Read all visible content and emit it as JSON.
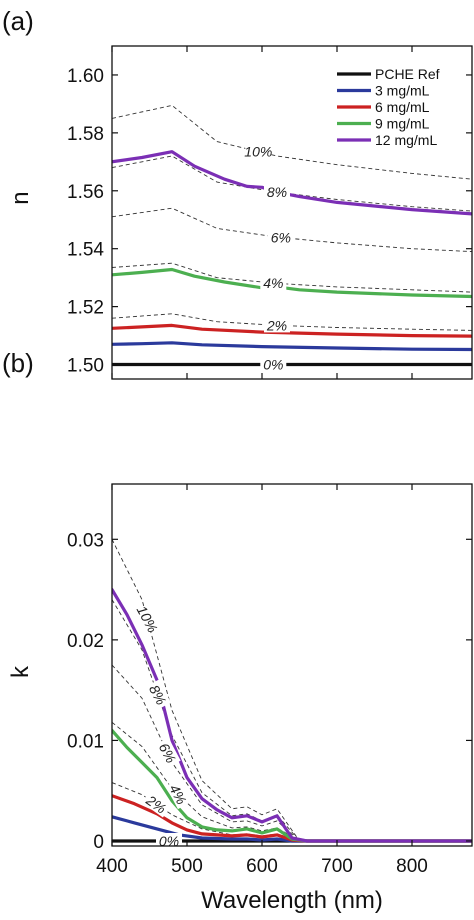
{
  "chart_data": [
    {
      "type": "line",
      "panel_label": "(a)",
      "ylabel": "n",
      "xlabel": "",
      "xlim": [
        400,
        880
      ],
      "ylim": [
        1.495,
        1.61
      ],
      "yticks": [
        1.5,
        1.52,
        1.54,
        1.56,
        1.58,
        1.6
      ],
      "ytick_labels": [
        "1.50",
        "1.52",
        "1.54",
        "1.56",
        "1.58",
        "1.60"
      ],
      "legend_position": "top-right",
      "series": [
        {
          "name": "PCHE Ref",
          "color": "#111111",
          "x": [
            400,
            880
          ],
          "y": [
            1.5,
            1.5
          ]
        },
        {
          "name": "3 mg/mL",
          "color": "#2b3a9c",
          "x": [
            400,
            440,
            480,
            520,
            600,
            700,
            800,
            880
          ],
          "y": [
            1.507,
            1.5072,
            1.5075,
            1.5068,
            1.5062,
            1.5057,
            1.5053,
            1.5052
          ]
        },
        {
          "name": "6 mg/mL",
          "color": "#cc2222",
          "x": [
            400,
            440,
            480,
            520,
            600,
            700,
            800,
            880
          ],
          "y": [
            1.5125,
            1.513,
            1.5135,
            1.5122,
            1.5112,
            1.5105,
            1.51,
            1.5098
          ]
        },
        {
          "name": "9 mg/mL",
          "color": "#4caf50",
          "x": [
            400,
            440,
            480,
            510,
            550,
            600,
            620,
            650,
            700,
            800,
            880
          ],
          "y": [
            1.531,
            1.5318,
            1.5328,
            1.5305,
            1.5285,
            1.5265,
            1.5268,
            1.5258,
            1.525,
            1.524,
            1.5235
          ]
        },
        {
          "name": "12 mg/mL",
          "color": "#7b2fb5",
          "x": [
            400,
            440,
            480,
            510,
            550,
            580,
            600,
            620,
            650,
            700,
            800,
            880
          ],
          "y": [
            1.57,
            1.5715,
            1.5735,
            1.5685,
            1.564,
            1.5615,
            1.5612,
            1.5595,
            1.558,
            1.556,
            1.5535,
            1.552
          ]
        }
      ],
      "reference_curves": [
        {
          "label": "10%",
          "x": [
            400,
            480,
            540,
            620,
            700,
            800,
            880
          ],
          "y": [
            1.585,
            1.5895,
            1.577,
            1.572,
            1.569,
            1.566,
            1.564
          ]
        },
        {
          "label": "8%",
          "x": [
            400,
            480,
            540,
            620,
            700,
            800,
            880
          ],
          "y": [
            1.568,
            1.572,
            1.563,
            1.5595,
            1.557,
            1.5545,
            1.553
          ]
        },
        {
          "label": "6%",
          "x": [
            400,
            480,
            540,
            620,
            700,
            800,
            880
          ],
          "y": [
            1.551,
            1.554,
            1.547,
            1.544,
            1.542,
            1.54,
            1.539
          ]
        },
        {
          "label": "4%",
          "x": [
            400,
            480,
            540,
            620,
            700,
            800,
            880
          ],
          "y": [
            1.5335,
            1.535,
            1.53,
            1.528,
            1.5268,
            1.5258,
            1.525
          ]
        },
        {
          "label": "2%",
          "x": [
            400,
            480,
            540,
            620,
            700,
            800,
            880
          ],
          "y": [
            1.516,
            1.5175,
            1.5148,
            1.5135,
            1.5128,
            1.5122,
            1.5118
          ]
        },
        {
          "label": "0%",
          "x": [
            400,
            880
          ],
          "y": [
            1.5,
            1.5
          ]
        }
      ]
    },
    {
      "type": "line",
      "panel_label": "(b)",
      "ylabel": "k",
      "xlabel": "Wavelength (nm)",
      "xlim": [
        400,
        880
      ],
      "ylim": [
        -0.0005,
        0.0355
      ],
      "xticks": [
        400,
        500,
        600,
        700,
        800
      ],
      "xtick_labels": [
        "400",
        "500",
        "600",
        "700",
        "800"
      ],
      "yticks": [
        0,
        0.01,
        0.02,
        0.03
      ],
      "ytick_labels": [
        "0",
        "0.01",
        "0.02",
        "0.03"
      ],
      "series": [
        {
          "name": "PCHE Ref",
          "color": "#111111",
          "x": [
            400,
            880
          ],
          "y": [
            0,
            0
          ]
        },
        {
          "name": "3 mg/mL",
          "color": "#2b3a9c",
          "x": [
            400,
            430,
            460,
            490,
            520,
            560,
            580,
            600,
            620,
            640,
            660,
            880
          ],
          "y": [
            0.0024,
            0.0018,
            0.0012,
            0.0006,
            0.0003,
            0.0002,
            0.0002,
            0.0001,
            0.0002,
            0.0,
            0.0,
            0.0
          ]
        },
        {
          "name": "6 mg/mL",
          "color": "#cc2222",
          "x": [
            400,
            430,
            460,
            480,
            500,
            520,
            560,
            580,
            600,
            620,
            640,
            660,
            880
          ],
          "y": [
            0.0045,
            0.0037,
            0.0027,
            0.0018,
            0.0011,
            0.0007,
            0.0005,
            0.0006,
            0.0004,
            0.0006,
            0.0001,
            0.0,
            0.0
          ]
        },
        {
          "name": "9 mg/mL",
          "color": "#4caf50",
          "x": [
            400,
            420,
            440,
            460,
            480,
            500,
            520,
            540,
            560,
            580,
            600,
            620,
            640,
            660,
            880
          ],
          "y": [
            0.011,
            0.0093,
            0.0078,
            0.0063,
            0.004,
            0.0023,
            0.0014,
            0.0011,
            0.001,
            0.0012,
            0.0008,
            0.0012,
            0.0002,
            0.0,
            0.0
          ]
        },
        {
          "name": "12 mg/mL",
          "color": "#7b2fb5",
          "x": [
            400,
            420,
            440,
            460,
            480,
            500,
            520,
            540,
            560,
            580,
            600,
            620,
            640,
            660,
            880
          ],
          "y": [
            0.025,
            0.0225,
            0.0195,
            0.016,
            0.01,
            0.0063,
            0.0042,
            0.0031,
            0.0023,
            0.0025,
            0.0019,
            0.0025,
            0.0003,
            0.0,
            0.0
          ]
        }
      ],
      "reference_curves": [
        {
          "label": "10%",
          "x": [
            400,
            440,
            480,
            520,
            560,
            580,
            600,
            620,
            650,
            880
          ],
          "y": [
            0.03,
            0.024,
            0.013,
            0.006,
            0.0032,
            0.0034,
            0.0026,
            0.0032,
            0.0,
            0.0
          ]
        },
        {
          "label": "8%",
          "x": [
            400,
            440,
            480,
            520,
            560,
            580,
            600,
            620,
            650,
            880
          ],
          "y": [
            0.024,
            0.019,
            0.0105,
            0.0048,
            0.0025,
            0.0027,
            0.002,
            0.0026,
            0.0,
            0.0
          ]
        },
        {
          "label": "6%",
          "x": [
            400,
            440,
            480,
            520,
            560,
            580,
            600,
            620,
            650,
            880
          ],
          "y": [
            0.0175,
            0.0142,
            0.0078,
            0.0036,
            0.0019,
            0.002,
            0.0015,
            0.002,
            0.0,
            0.0
          ]
        },
        {
          "label": "4%",
          "x": [
            400,
            440,
            480,
            520,
            560,
            580,
            600,
            620,
            650,
            880
          ],
          "y": [
            0.0118,
            0.0094,
            0.0052,
            0.0024,
            0.0013,
            0.0014,
            0.001,
            0.0013,
            0.0,
            0.0
          ]
        },
        {
          "label": "2%",
          "x": [
            400,
            440,
            480,
            520,
            560,
            580,
            600,
            620,
            650,
            880
          ],
          "y": [
            0.0058,
            0.0046,
            0.0026,
            0.0012,
            0.0006,
            0.0007,
            0.0005,
            0.0007,
            0.0,
            0.0
          ]
        },
        {
          "label": "0%",
          "x": [
            400,
            880
          ],
          "y": [
            0.0,
            0.0
          ]
        }
      ]
    }
  ]
}
